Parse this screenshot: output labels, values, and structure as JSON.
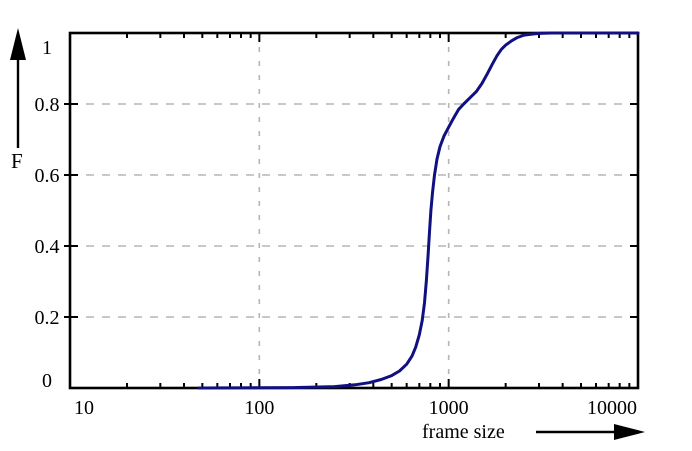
{
  "chart_data": {
    "type": "line",
    "subtype": "cdf",
    "title": "",
    "xlabel": "frame size",
    "ylabel": "F",
    "x_scale": "log",
    "xlim": [
      10,
      10000
    ],
    "ylim": [
      0,
      1
    ],
    "grid": {
      "x_values": [
        100,
        1000
      ],
      "y_values": [
        0.2,
        0.4,
        0.6,
        0.8
      ]
    },
    "x_ticks": [
      {
        "value": 10,
        "label": "10"
      },
      {
        "value": 100,
        "label": "100"
      },
      {
        "value": 1000,
        "label": "1000"
      },
      {
        "value": 10000,
        "label": "10000"
      }
    ],
    "y_ticks": [
      {
        "value": 0,
        "label": "0"
      },
      {
        "value": 0.2,
        "label": "0.2"
      },
      {
        "value": 0.4,
        "label": "0.4"
      },
      {
        "value": 0.6,
        "label": "0.6"
      },
      {
        "value": 0.8,
        "label": "0.8"
      },
      {
        "value": 1,
        "label": "1"
      }
    ],
    "legend_position": "none",
    "series": [
      {
        "name": "F",
        "color": "#101080",
        "points": [
          [
            48,
            0
          ],
          [
            150,
            0.001
          ],
          [
            250,
            0.004
          ],
          [
            320,
            0.009
          ],
          [
            380,
            0.015
          ],
          [
            440,
            0.024
          ],
          [
            500,
            0.035
          ],
          [
            550,
            0.048
          ],
          [
            600,
            0.067
          ],
          [
            640,
            0.09
          ],
          [
            670,
            0.115
          ],
          [
            700,
            0.15
          ],
          [
            725,
            0.19
          ],
          [
            745,
            0.24
          ],
          [
            762,
            0.3
          ],
          [
            778,
            0.37
          ],
          [
            792,
            0.44
          ],
          [
            806,
            0.5
          ],
          [
            822,
            0.55
          ],
          [
            842,
            0.6
          ],
          [
            868,
            0.645
          ],
          [
            900,
            0.68
          ],
          [
            945,
            0.71
          ],
          [
            1000,
            0.735
          ],
          [
            1060,
            0.76
          ],
          [
            1130,
            0.785
          ],
          [
            1200,
            0.8
          ],
          [
            1300,
            0.818
          ],
          [
            1400,
            0.835
          ],
          [
            1500,
            0.858
          ],
          [
            1600,
            0.885
          ],
          [
            1700,
            0.912
          ],
          [
            1800,
            0.936
          ],
          [
            1900,
            0.954
          ],
          [
            2000,
            0.966
          ],
          [
            2150,
            0.978
          ],
          [
            2300,
            0.987
          ],
          [
            2500,
            0.994
          ],
          [
            2750,
            0.997
          ],
          [
            3000,
            0.999
          ],
          [
            3500,
            1
          ],
          [
            10000,
            1
          ]
        ]
      }
    ]
  },
  "colors": {
    "background": "#ffffff",
    "axis": "#000000",
    "grid": "#b5b5b5",
    "curve": "#101080",
    "text": "#000000"
  }
}
